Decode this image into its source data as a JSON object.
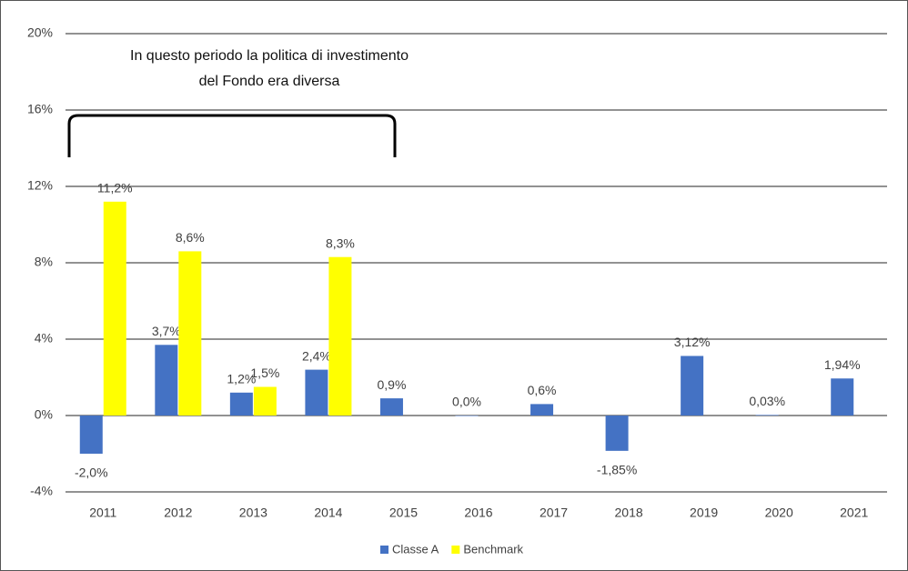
{
  "chart_data": {
    "type": "bar",
    "annotation": [
      "In questo periodo la politica di investimento",
      "del Fondo era diversa"
    ],
    "categories": [
      "2011",
      "2012",
      "2013",
      "2014",
      "2015",
      "2016",
      "2017",
      "2018",
      "2019",
      "2020",
      "2021"
    ],
    "series": [
      {
        "name": "Classe A",
        "color": "#4472c4",
        "values": [
          -2.0,
          3.7,
          1.2,
          2.4,
          0.9,
          0.0,
          0.6,
          -1.85,
          3.12,
          0.03,
          1.94
        ],
        "value_labels": [
          "-2,0%",
          "3,7%",
          "1,2%",
          "2,4%",
          "0,9%",
          "0,0%",
          "0,6%",
          "-1,85%",
          "3,12%",
          "0,03%",
          "1,94%"
        ]
      },
      {
        "name": "Benchmark",
        "color": "#ffff00",
        "values": [
          11.2,
          8.6,
          1.5,
          8.3,
          null,
          null,
          null,
          null,
          null,
          null,
          null
        ],
        "value_labels": [
          "11,2%",
          "8,6%",
          "1,5%",
          "8,3%",
          null,
          null,
          null,
          null,
          null,
          null,
          null
        ]
      }
    ],
    "ylim": [
      -4,
      20
    ],
    "yticks": [
      {
        "value": -4,
        "label": "-4%"
      },
      {
        "value": 0,
        "label": "0%"
      },
      {
        "value": 4,
        "label": "4%"
      },
      {
        "value": 8,
        "label": "8%"
      },
      {
        "value": 12,
        "label": "12%"
      },
      {
        "value": 16,
        "label": "16%"
      },
      {
        "value": 20,
        "label": "20%"
      }
    ],
    "grid": true,
    "legend": "bottom"
  }
}
